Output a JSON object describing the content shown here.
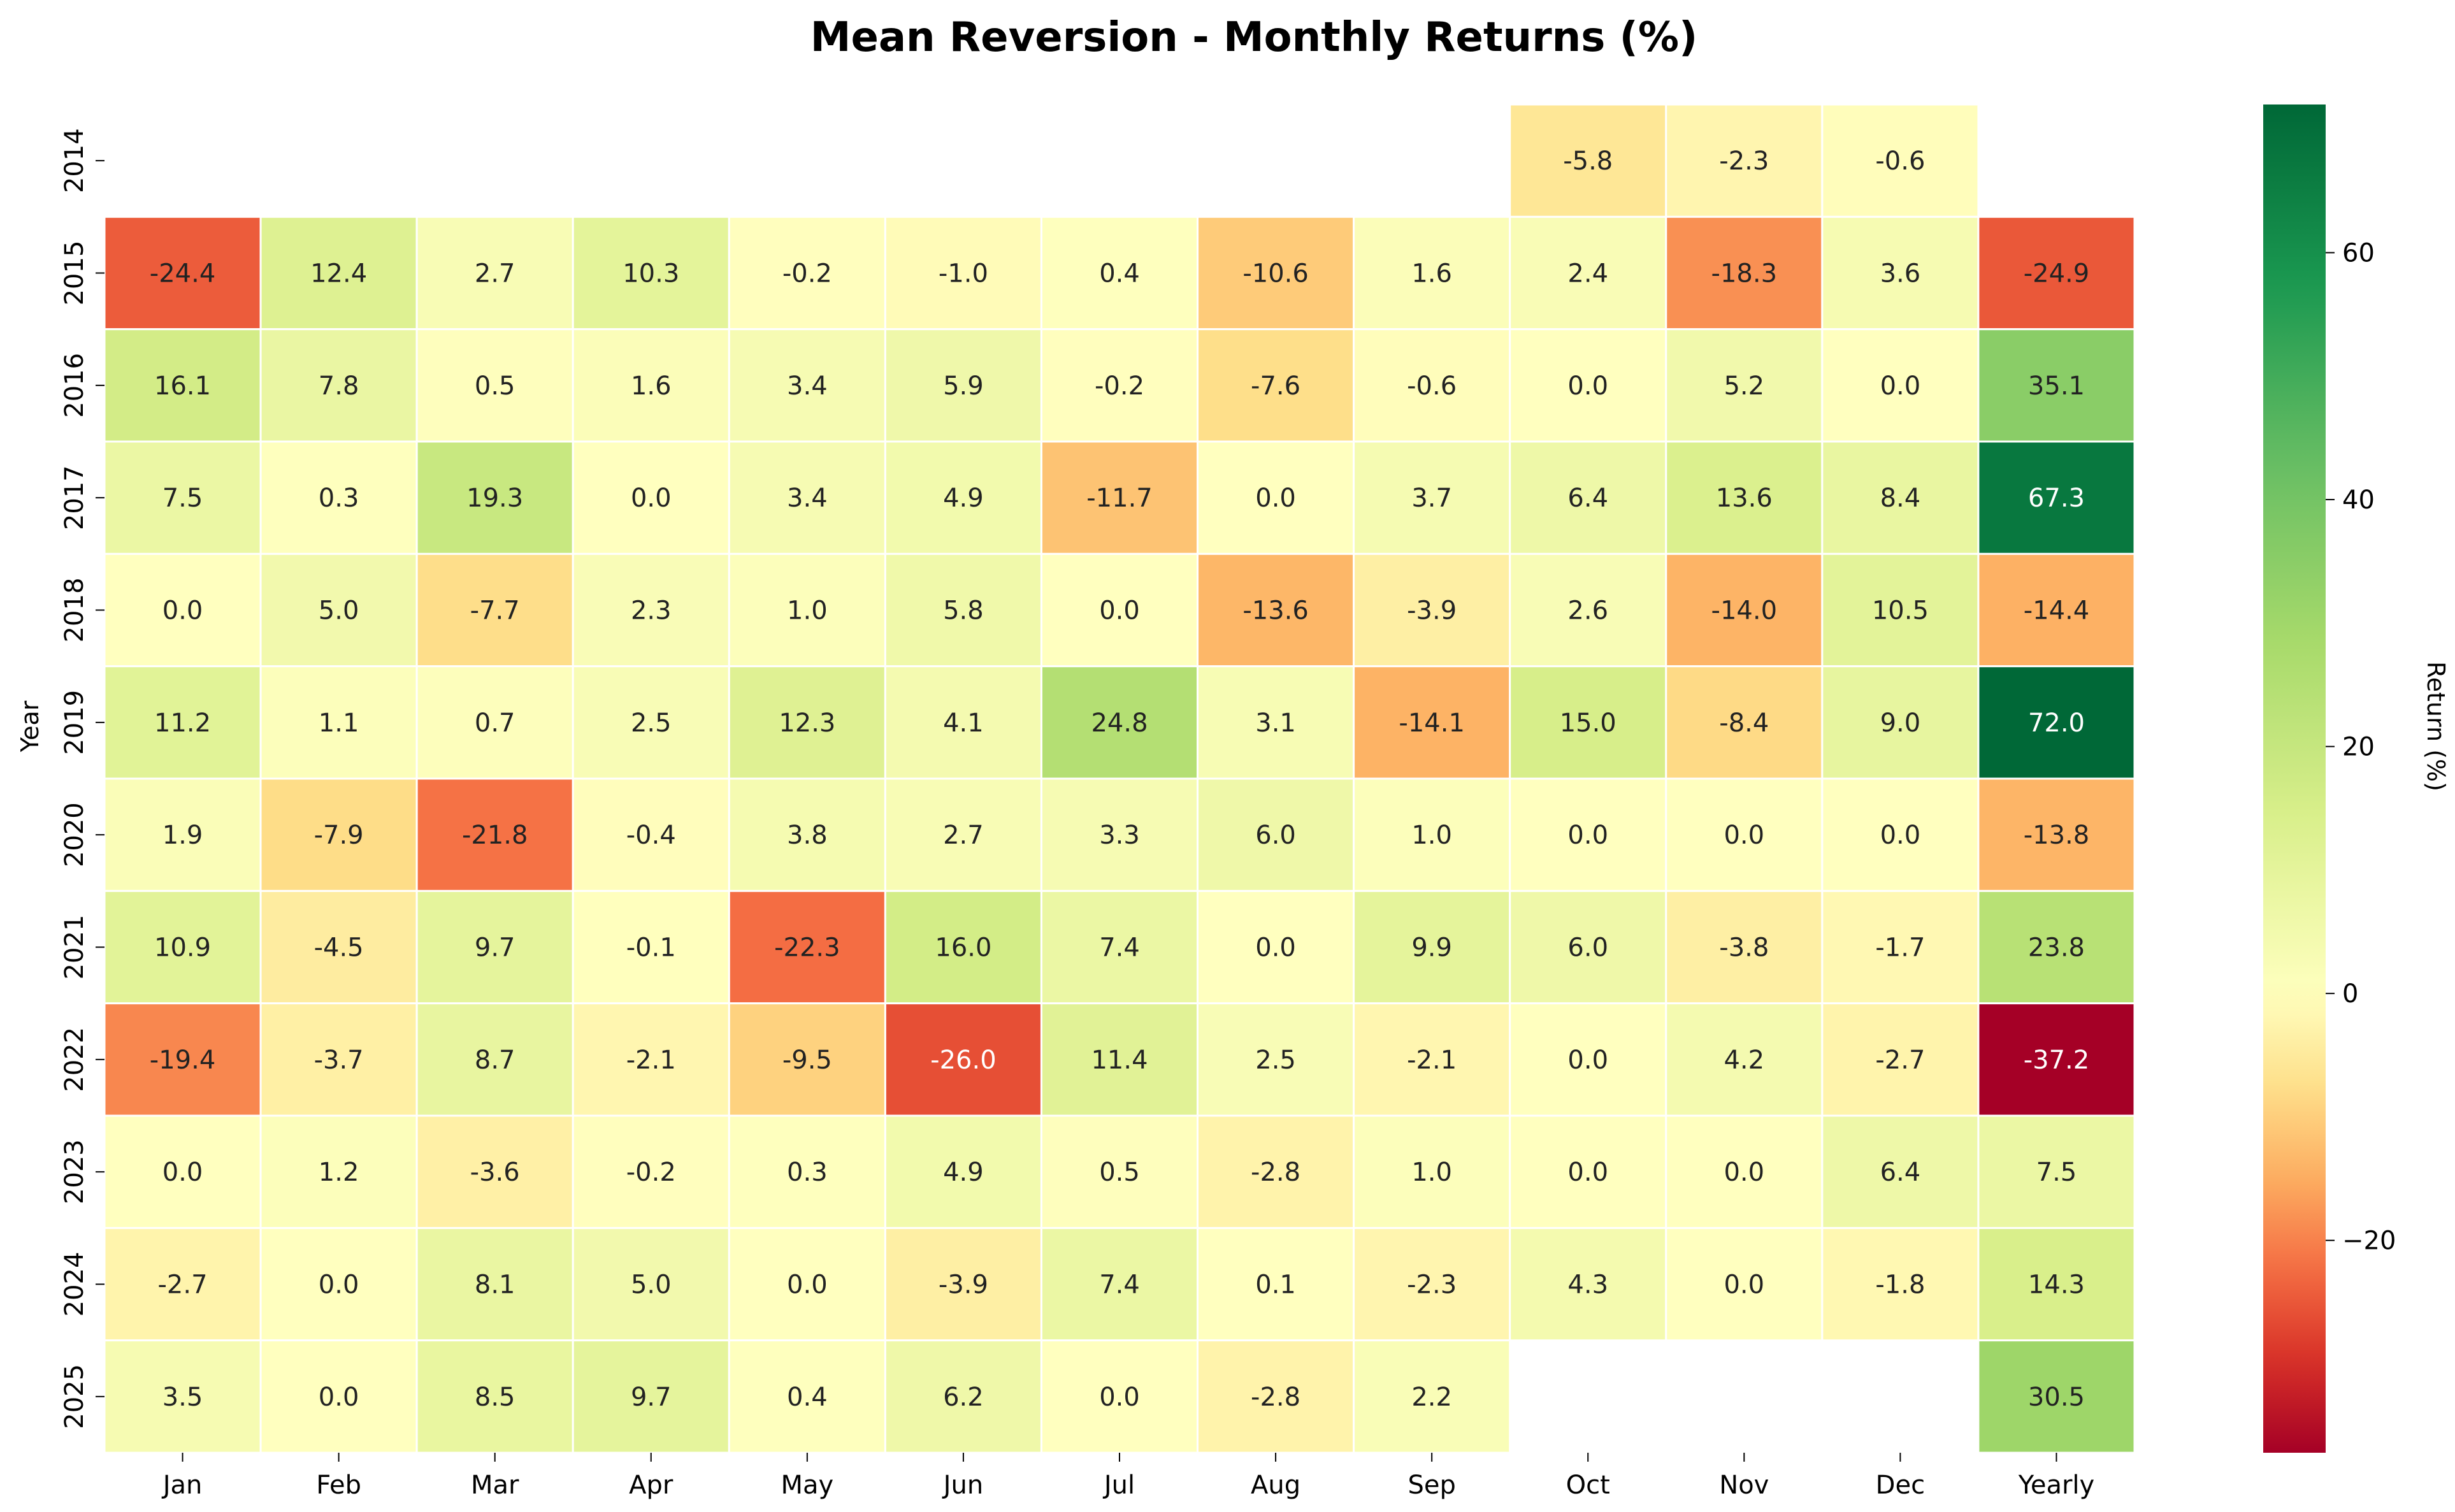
{
  "chart_data": {
    "type": "heatmap",
    "title": "Mean Reversion - Monthly Returns (%)",
    "xlabel": "",
    "ylabel": "Year",
    "colorbar_label": "Return (%)",
    "colormap": "RdYlGn",
    "color_range": [
      -37.2,
      72.0
    ],
    "colorbar_ticks": [
      -20,
      0,
      20,
      40,
      60
    ],
    "columns": [
      "Jan",
      "Feb",
      "Mar",
      "Apr",
      "May",
      "Jun",
      "Jul",
      "Aug",
      "Sep",
      "Oct",
      "Nov",
      "Dec",
      "Yearly"
    ],
    "rows": [
      "2014",
      "2015",
      "2016",
      "2017",
      "2018",
      "2019",
      "2020",
      "2021",
      "2022",
      "2023",
      "2024",
      "2025"
    ],
    "values": [
      [
        null,
        null,
        null,
        null,
        null,
        null,
        null,
        null,
        null,
        -5.8,
        -2.3,
        -0.6,
        null
      ],
      [
        -24.4,
        12.4,
        2.7,
        10.3,
        -0.2,
        -1.0,
        0.4,
        -10.6,
        1.6,
        2.4,
        -18.3,
        3.6,
        -24.9
      ],
      [
        16.1,
        7.8,
        0.5,
        1.6,
        3.4,
        5.9,
        -0.2,
        -7.6,
        -0.6,
        0.0,
        5.2,
        0.0,
        35.1
      ],
      [
        7.5,
        0.3,
        19.3,
        0.0,
        3.4,
        4.9,
        -11.7,
        0.0,
        3.7,
        6.4,
        13.6,
        8.4,
        67.3
      ],
      [
        0.0,
        5.0,
        -7.7,
        2.3,
        1.0,
        5.8,
        0.0,
        -13.6,
        -3.9,
        2.6,
        -14.0,
        10.5,
        -14.4
      ],
      [
        11.2,
        1.1,
        0.7,
        2.5,
        12.3,
        4.1,
        24.8,
        3.1,
        -14.1,
        15.0,
        -8.4,
        9.0,
        72.0
      ],
      [
        1.9,
        -7.9,
        -21.8,
        -0.4,
        3.8,
        2.7,
        3.3,
        6.0,
        1.0,
        0.0,
        0.0,
        0.0,
        -13.8
      ],
      [
        10.9,
        -4.5,
        9.7,
        -0.1,
        -22.3,
        16.0,
        7.4,
        0.0,
        9.9,
        6.0,
        -3.8,
        -1.7,
        23.8
      ],
      [
        -19.4,
        -3.7,
        8.7,
        -2.1,
        -9.5,
        -26.0,
        11.4,
        2.5,
        -2.1,
        0.0,
        4.2,
        -2.7,
        -37.2
      ],
      [
        0.0,
        1.2,
        -3.6,
        -0.2,
        0.3,
        4.9,
        0.5,
        -2.8,
        1.0,
        0.0,
        0.0,
        6.4,
        7.5
      ],
      [
        -2.7,
        0.0,
        8.1,
        5.0,
        0.0,
        -3.9,
        7.4,
        0.1,
        -2.3,
        4.3,
        0.0,
        -1.8,
        14.3
      ],
      [
        3.5,
        0.0,
        8.5,
        9.7,
        0.4,
        6.2,
        0.0,
        -2.8,
        2.2,
        null,
        null,
        null,
        30.5
      ]
    ]
  }
}
